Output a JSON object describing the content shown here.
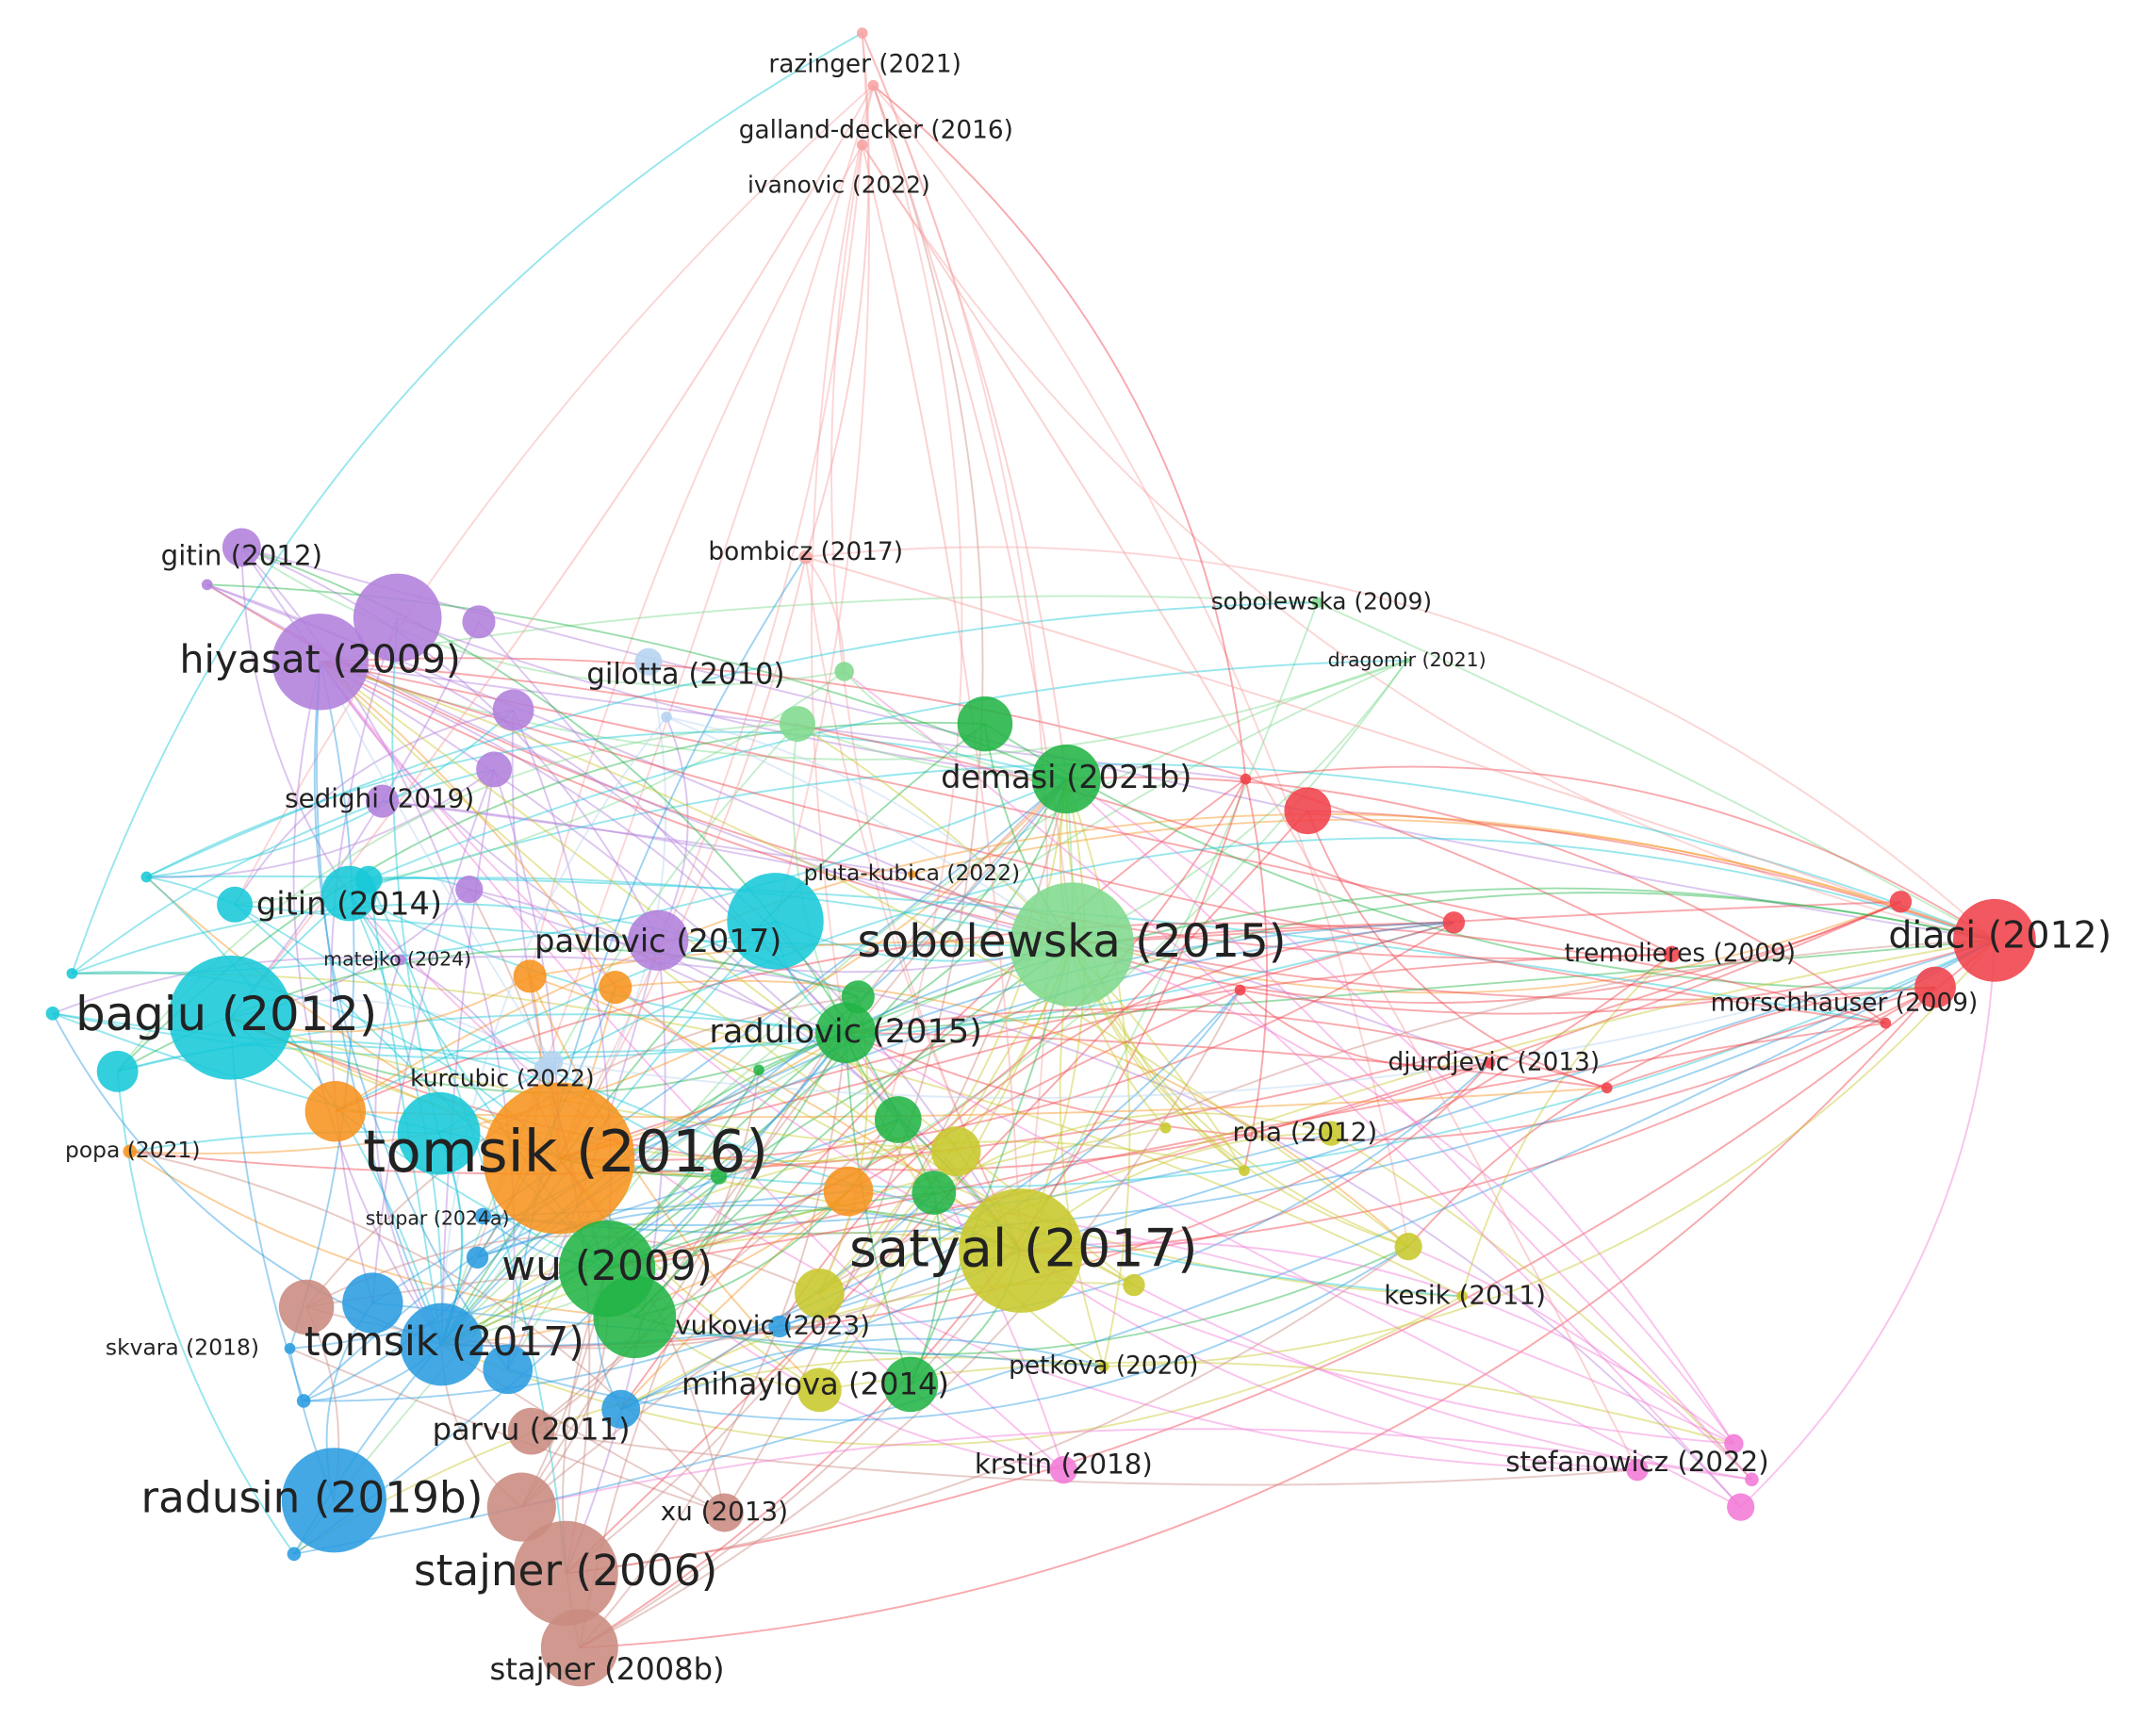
{
  "nodes": [
    {
      "label": "razinger (2021)"
    },
    {
      "label": "galland-decker (2016)"
    },
    {
      "label": "ivanovic (2022)"
    },
    {
      "label": "gitin (2012)"
    },
    {
      "label": "bombicz (2017)"
    },
    {
      "label": "sobolewska (2009)"
    },
    {
      "label": "hiyasat (2009)"
    },
    {
      "label": "gilotta (2010)"
    },
    {
      "label": "dragomir (2021)"
    },
    {
      "label": "demasi (2021b)"
    },
    {
      "label": "sedighi (2019)"
    },
    {
      "label": "pluta-kubica (2022)"
    },
    {
      "label": "gitin (2014)"
    },
    {
      "label": "pavlovic (2017)"
    },
    {
      "label": "sobolewska (2015)"
    },
    {
      "label": "diaci (2012)"
    },
    {
      "label": "tremolieres (2009)"
    },
    {
      "label": "morschhauser (2009)"
    },
    {
      "label": "matejko (2024)"
    },
    {
      "label": "bagiu (2012)"
    },
    {
      "label": "radulovic (2015)"
    },
    {
      "label": "kurcubic (2022)"
    },
    {
      "label": "djurdjevic (2013)"
    },
    {
      "label": "popa (2021)"
    },
    {
      "label": "tomsik (2016)"
    },
    {
      "label": "rola (2012)"
    },
    {
      "label": "stupar (2024a)"
    },
    {
      "label": "satyal (2017)"
    },
    {
      "label": "wu (2009)"
    },
    {
      "label": "kesik (2011)"
    },
    {
      "label": "skvara (2018)"
    },
    {
      "label": "tomsik (2017)"
    },
    {
      "label": "vukovic (2023)"
    },
    {
      "label": "petkova (2020)"
    },
    {
      "label": "mihaylova (2014)"
    },
    {
      "label": "parvu (2011)"
    },
    {
      "label": "krstin (2018)"
    },
    {
      "label": "stefanowicz (2022)"
    },
    {
      "label": "radusin (2019b)"
    },
    {
      "label": "xu (2013)"
    },
    {
      "label": "stajner (2006)"
    },
    {
      "label": "stajner (2008b)"
    }
  ]
}
